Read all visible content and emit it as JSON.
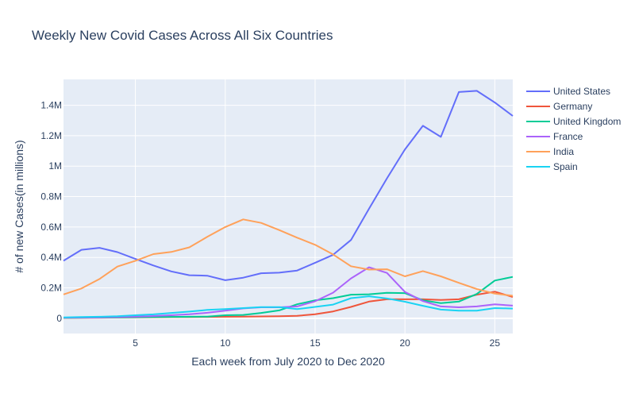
{
  "chart_data": {
    "type": "line",
    "title": "Weekly New Covid Cases Across All Six Countries",
    "xlabel": "Each week from July 2020 to Dec 2020",
    "ylabel": "# of new Cases(in millions)",
    "xlim": [
      1,
      26
    ],
    "ylim": [
      -100000,
      1570000
    ],
    "x_ticks": [
      5,
      10,
      15,
      20,
      25
    ],
    "y_ticks": [
      0,
      200000,
      400000,
      600000,
      800000,
      1000000,
      1200000,
      1400000
    ],
    "y_tick_labels": [
      "0",
      "0.2M",
      "0.4M",
      "0.6M",
      "0.8M",
      "1M",
      "1.2M",
      "1.4M"
    ],
    "grid": true,
    "legend_position": "right",
    "x": [
      1,
      2,
      3,
      4,
      5,
      6,
      7,
      8,
      9,
      10,
      11,
      12,
      13,
      14,
      15,
      16,
      17,
      18,
      19,
      20,
      21,
      22,
      23,
      24,
      25,
      26
    ],
    "series": [
      {
        "name": "United States",
        "color": "#636efa",
        "values": [
          378000,
          450000,
          463000,
          435000,
          390000,
          347000,
          308000,
          283000,
          280000,
          250000,
          267000,
          296000,
          300000,
          314000,
          365000,
          417000,
          515000,
          720000,
          920000,
          1110000,
          1265000,
          1192000,
          1487000,
          1495000,
          1418000,
          1330000
        ]
      },
      {
        "name": "Germany",
        "color": "#ef553b",
        "values": [
          2000,
          3000,
          4000,
          5000,
          6000,
          7000,
          8000,
          8000,
          9000,
          10000,
          11000,
          12000,
          14000,
          16000,
          27000,
          45000,
          75000,
          110000,
          125000,
          125000,
          125000,
          120000,
          125000,
          155000,
          175000,
          140000
        ]
      },
      {
        "name": "United Kingdom",
        "color": "#00cc96",
        "values": [
          3000,
          4000,
          5000,
          6000,
          7000,
          8000,
          9000,
          10000,
          11000,
          20000,
          22000,
          35000,
          52000,
          92000,
          118000,
          132000,
          155000,
          158000,
          167000,
          165000,
          118000,
          100000,
          110000,
          160000,
          248000,
          272000
        ]
      },
      {
        "name": "France",
        "color": "#ab63fa",
        "values": [
          4000,
          5000,
          6000,
          8000,
          11000,
          15000,
          20000,
          27000,
          36000,
          50000,
          65000,
          72000,
          72000,
          78000,
          112000,
          168000,
          262000,
          335000,
          298000,
          173000,
          113000,
          78000,
          72000,
          78000,
          92000,
          83000
        ]
      },
      {
        "name": "India",
        "color": "#ffa15a",
        "values": [
          157000,
          196000,
          258000,
          340000,
          378000,
          422000,
          436000,
          466000,
          535000,
          600000,
          650000,
          627000,
          580000,
          530000,
          483000,
          420000,
          342000,
          320000,
          322000,
          276000,
          310000,
          276000,
          233000,
          192000,
          162000,
          148000
        ]
      },
      {
        "name": "Spain",
        "color": "#19d3f3",
        "values": [
          6000,
          8000,
          10000,
          13000,
          20000,
          26000,
          35000,
          44000,
          55000,
          60000,
          67000,
          74000,
          74000,
          60000,
          75000,
          90000,
          132000,
          145000,
          130000,
          109000,
          82000,
          57000,
          50000,
          50000,
          67000,
          64000
        ]
      }
    ]
  }
}
